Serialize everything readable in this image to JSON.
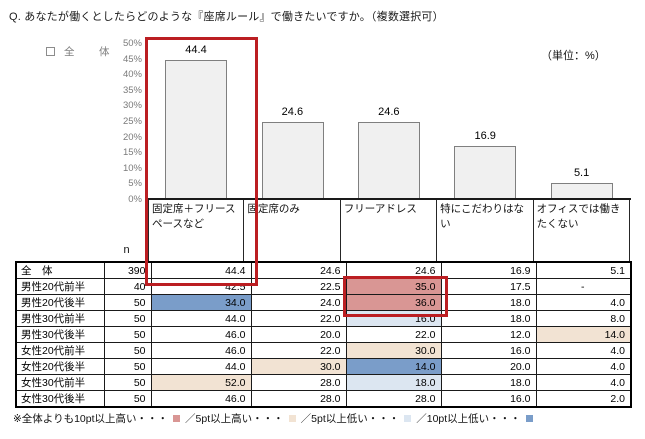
{
  "title": "Q. あなたが働くとしたらどのような『座席ルール』で働きたいですか。（複数選択可）",
  "unit_label": "（単位：%）",
  "legend": {
    "series_label": "全　体"
  },
  "chart_data": {
    "type": "bar",
    "title": "あなたが働くとしたらどのような『座席ルール』で働きたいですか。（複数選択可）",
    "series_name": "全体",
    "categories": [
      "固定席＋フリースペースなど",
      "固定席のみ",
      "フリーアドレス",
      "特にこだわりはない",
      "オフィスでは働きたくない"
    ],
    "values": [
      44.4,
      24.6,
      24.6,
      16.9,
      5.1
    ],
    "unit": "%",
    "ylim": [
      0,
      50
    ],
    "ytick_step": 5,
    "y_ticks": [
      "50%",
      "45%",
      "40%",
      "35%",
      "30%",
      "25%",
      "20%",
      "15%",
      "10%",
      "5%",
      "0%"
    ],
    "grid": false,
    "legend_position": "top-left"
  },
  "table": {
    "n_header": "n",
    "columns": [
      "固定席＋フリースペースなど",
      "固定席のみ",
      "フリーアドレス",
      "特にこだわりはない",
      "オフィスでは働きたくない"
    ],
    "rows": [
      {
        "label": "全　体",
        "n": "390",
        "values": [
          "44.4",
          "24.6",
          "24.6",
          "16.9",
          "5.1"
        ],
        "highlights": [
          null,
          null,
          null,
          null,
          null
        ]
      },
      {
        "label": "男性20代前半",
        "n": "40",
        "values": [
          "42.5",
          "22.5",
          "35.0",
          "17.5",
          "-"
        ],
        "highlights": [
          null,
          null,
          "high10",
          null,
          null
        ]
      },
      {
        "label": "男性20代後半",
        "n": "50",
        "values": [
          "34.0",
          "24.0",
          "36.0",
          "18.0",
          "4.0"
        ],
        "highlights": [
          "low10",
          null,
          "high10",
          null,
          null
        ]
      },
      {
        "label": "男性30代前半",
        "n": "50",
        "values": [
          "44.0",
          "22.0",
          "16.0",
          "18.0",
          "8.0"
        ],
        "highlights": [
          null,
          null,
          "low5",
          null,
          null
        ]
      },
      {
        "label": "男性30代後半",
        "n": "50",
        "values": [
          "46.0",
          "20.0",
          "22.0",
          "12.0",
          "14.0"
        ],
        "highlights": [
          null,
          null,
          null,
          null,
          "high5"
        ]
      },
      {
        "label": "女性20代前半",
        "n": "50",
        "values": [
          "46.0",
          "22.0",
          "30.0",
          "16.0",
          "4.0"
        ],
        "highlights": [
          null,
          null,
          "high5",
          null,
          null
        ]
      },
      {
        "label": "女性20代後半",
        "n": "50",
        "values": [
          "44.0",
          "30.0",
          "14.0",
          "20.0",
          "4.0"
        ],
        "highlights": [
          null,
          "high5",
          "low10",
          null,
          null
        ]
      },
      {
        "label": "女性30代前半",
        "n": "50",
        "values": [
          "52.0",
          "28.0",
          "18.0",
          "18.0",
          "4.0"
        ],
        "highlights": [
          "high5",
          null,
          "low5",
          null,
          null
        ]
      },
      {
        "label": "女性30代後半",
        "n": "50",
        "values": [
          "46.0",
          "28.0",
          "28.0",
          "16.0",
          "2.0"
        ],
        "highlights": [
          null,
          null,
          null,
          null,
          null
        ]
      }
    ]
  },
  "footnote": {
    "prefix": "※全体よりも",
    "separator": "／",
    "items": [
      {
        "label": "10pt以上高い・・・",
        "level": "high10"
      },
      {
        "label": "5pt以上高い・・・",
        "level": "high5"
      },
      {
        "label": "5pt以上低い・・・",
        "level": "low5"
      },
      {
        "label": "10pt以上低い・・・",
        "level": "low10"
      }
    ]
  },
  "highlight_colors": {
    "high10": "#d99694",
    "high5": "#f2e3d3",
    "low5": "#dce6f1",
    "low10": "#7a9dc9"
  },
  "colors": {
    "bar_fill": "#f0f0f0",
    "bar_border": "#7f7f7f",
    "highlight_box": "#bb1e22",
    "axis_text": "#7a7a7a",
    "table_border": "#1a1a1a"
  }
}
